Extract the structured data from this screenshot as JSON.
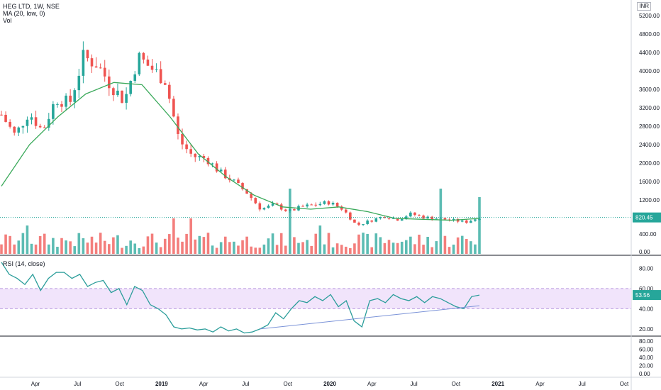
{
  "legend": {
    "title": "HEG LTD, 1W, NSE",
    "ma": "MA (20, low, 0)",
    "vol": "Vol"
  },
  "currency": "INR",
  "rsi_legend": "RSI (14, close)",
  "colors": {
    "up": "#26a69a",
    "down": "#ef5350",
    "ma": "#3aa95a",
    "rsi": "#2a9d9a",
    "trendline": "#7b93d8",
    "band_fill": "#f1e4fb",
    "band_border": "#b99be0",
    "last_price_line": "#26a69a"
  },
  "chart_data": [
    {
      "type": "candlestick",
      "title": "HEG LTD, 1W, NSE",
      "y_axis_ticks": [
        "5200.00",
        "4800.00",
        "4400.00",
        "4000.00",
        "3600.00",
        "3200.00",
        "2800.00",
        "2400.00",
        "2000.00",
        "1600.00",
        "1200.00",
        "400.00",
        "0.00"
      ],
      "x_axis_ticks": [
        "Apr",
        "Jul",
        "Oct",
        "2019",
        "Apr",
        "Jul",
        "Oct",
        "2020",
        "Apr",
        "Jul",
        "Oct",
        "2021",
        "Apr",
        "Jul",
        "Oct"
      ],
      "last_price": "820.45",
      "close_path": [
        {
          "date": "2018-01",
          "close": 3050
        },
        {
          "date": "2018-02",
          "close": 2600
        },
        {
          "date": "2018-03",
          "close": 3100
        },
        {
          "date": "2018-04",
          "close": 2700
        },
        {
          "date": "2018-05",
          "close": 3400
        },
        {
          "date": "2018-06",
          "close": 3300
        },
        {
          "date": "2018-07",
          "close": 4300
        },
        {
          "date": "2018-08",
          "close": 4150
        },
        {
          "date": "2018-09",
          "close": 3700
        },
        {
          "date": "2018-10",
          "close": 3350
        },
        {
          "date": "2018-11",
          "close": 4300
        },
        {
          "date": "2018-12",
          "close": 4050
        },
        {
          "date": "2019-01",
          "close": 3800
        },
        {
          "date": "2019-02",
          "close": 2500
        },
        {
          "date": "2019-03",
          "close": 2150
        },
        {
          "date": "2019-04",
          "close": 2100
        },
        {
          "date": "2019-05",
          "close": 1800
        },
        {
          "date": "2019-06",
          "close": 1600
        },
        {
          "date": "2019-07",
          "close": 1350
        },
        {
          "date": "2019-08",
          "close": 1000
        },
        {
          "date": "2019-09",
          "close": 1100
        },
        {
          "date": "2019-10",
          "close": 950
        },
        {
          "date": "2019-11",
          "close": 1050
        },
        {
          "date": "2019-12",
          "close": 1100
        },
        {
          "date": "2020-01",
          "close": 1150
        },
        {
          "date": "2020-02",
          "close": 1000
        },
        {
          "date": "2020-03",
          "close": 650
        },
        {
          "date": "2020-04",
          "close": 750
        },
        {
          "date": "2020-05",
          "close": 850
        },
        {
          "date": "2020-06",
          "close": 780
        },
        {
          "date": "2020-07",
          "close": 900
        },
        {
          "date": "2020-08",
          "close": 820
        },
        {
          "date": "2020-09",
          "close": 800
        },
        {
          "date": "2020-10",
          "close": 760
        },
        {
          "date": "2020-11",
          "close": 720
        },
        {
          "date": "2020-12",
          "close": 820
        }
      ],
      "ma": {
        "name": "MA (20, low, 0)",
        "path": [
          1500,
          2400,
          3000,
          3500,
          3750,
          3700,
          3000,
          2200,
          1700,
          1300,
          1050,
          1000,
          1050,
          950,
          800,
          780,
          760,
          800
        ]
      },
      "volume_axis": [
        "400.00",
        "0.00"
      ]
    },
    {
      "type": "line",
      "title": "RSI (14, close)",
      "y_axis_ticks": [
        "80.00",
        "60.00",
        "40.00",
        "20.00"
      ],
      "ylim": [
        15,
        88
      ],
      "band": [
        40,
        60
      ],
      "last_value": "53.56",
      "series": [
        {
          "values": [
            86,
            74,
            70,
            64,
            74,
            58,
            70,
            76,
            76,
            70,
            74,
            62,
            66,
            68,
            56,
            60,
            44,
            62,
            58,
            44,
            40,
            34,
            22,
            20,
            21,
            19,
            20,
            17,
            22,
            18,
            20,
            16,
            17,
            20,
            24,
            36,
            30,
            40,
            48,
            46,
            52,
            48,
            54,
            42,
            48,
            28,
            22,
            48,
            50,
            46,
            54,
            50,
            48,
            52,
            46,
            52,
            50,
            46,
            42,
            40,
            52,
            53.56
          ]
        }
      ],
      "trendline": {
        "from": {
          "index": 33,
          "value": 20
        },
        "to": {
          "index": 61,
          "value": 43
        }
      }
    },
    {
      "type": "line",
      "title": "",
      "y_axis_ticks": [
        "80.00",
        "60.00",
        "40.00",
        "20.00",
        "0.00"
      ]
    }
  ]
}
